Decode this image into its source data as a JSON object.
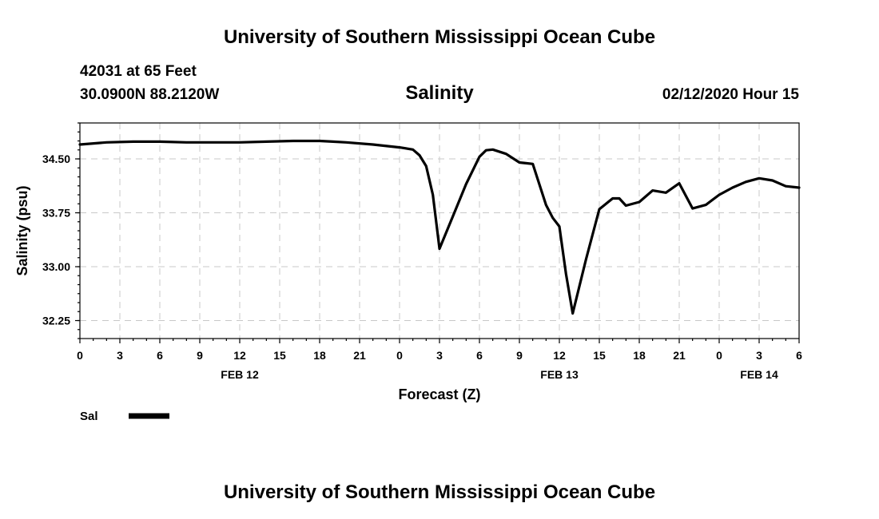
{
  "header": {
    "title_top": "University of Southern Mississippi Ocean Cube",
    "title_bottom": "University of Southern Mississippi Ocean Cube",
    "station_depth": "42031 at 65 Feet",
    "coordinates": "30.0900N 88.2120W",
    "forecast_time": "02/12/2020 Hour 15"
  },
  "chart_data": {
    "type": "line",
    "title": "Salinity",
    "xlabel": "Forecast (Z)",
    "ylabel": "Salinity (psu)",
    "xlim": [
      0,
      54
    ],
    "ylim": [
      32.0,
      35.0
    ],
    "grid": true,
    "x_ticks": [
      0,
      3,
      6,
      9,
      12,
      15,
      18,
      21,
      24,
      27,
      30,
      33,
      36,
      39,
      42,
      45,
      48,
      51,
      54
    ],
    "x_tick_labels": [
      "0",
      "3",
      "6",
      "9",
      "12",
      "15",
      "18",
      "21",
      "0",
      "3",
      "6",
      "9",
      "12",
      "15",
      "18",
      "21",
      "0",
      "3",
      "6"
    ],
    "y_ticks": [
      32.25,
      33.0,
      33.75,
      34.5
    ],
    "y_tick_labels": [
      "32.25",
      "33.00",
      "33.75",
      "34.50"
    ],
    "date_labels": [
      {
        "x": 12,
        "label": "FEB 12"
      },
      {
        "x": 36,
        "label": "FEB 13"
      },
      {
        "x": 51,
        "label": "FEB 14"
      }
    ],
    "legend": [
      {
        "name": "Sal",
        "position": "bottom-left"
      }
    ],
    "series": [
      {
        "name": "Sal",
        "x": [
          0,
          2,
          4,
          6,
          8,
          10,
          12,
          14,
          16,
          18,
          19,
          20,
          22,
          24,
          25,
          25.5,
          26,
          26.5,
          27,
          28,
          29,
          30,
          30.5,
          31,
          32,
          33,
          33.5,
          34,
          35,
          35.5,
          36,
          36.5,
          37,
          38,
          39,
          40,
          40.5,
          41,
          42,
          43,
          44,
          45,
          46,
          47,
          48,
          49,
          50,
          51,
          52,
          53,
          54
        ],
        "values": [
          34.7,
          34.73,
          34.74,
          34.74,
          34.73,
          34.73,
          34.73,
          34.74,
          34.75,
          34.75,
          34.74,
          34.73,
          34.7,
          34.66,
          34.63,
          34.55,
          34.4,
          34.0,
          33.25,
          33.7,
          34.15,
          34.53,
          34.62,
          34.63,
          34.57,
          34.45,
          34.44,
          34.43,
          33.86,
          33.68,
          33.56,
          32.9,
          32.35,
          33.1,
          33.8,
          33.95,
          33.95,
          33.85,
          33.9,
          34.06,
          34.03,
          34.16,
          33.81,
          33.86,
          34.0,
          34.1,
          34.18,
          34.23,
          34.2,
          34.12,
          34.1
        ]
      }
    ]
  }
}
